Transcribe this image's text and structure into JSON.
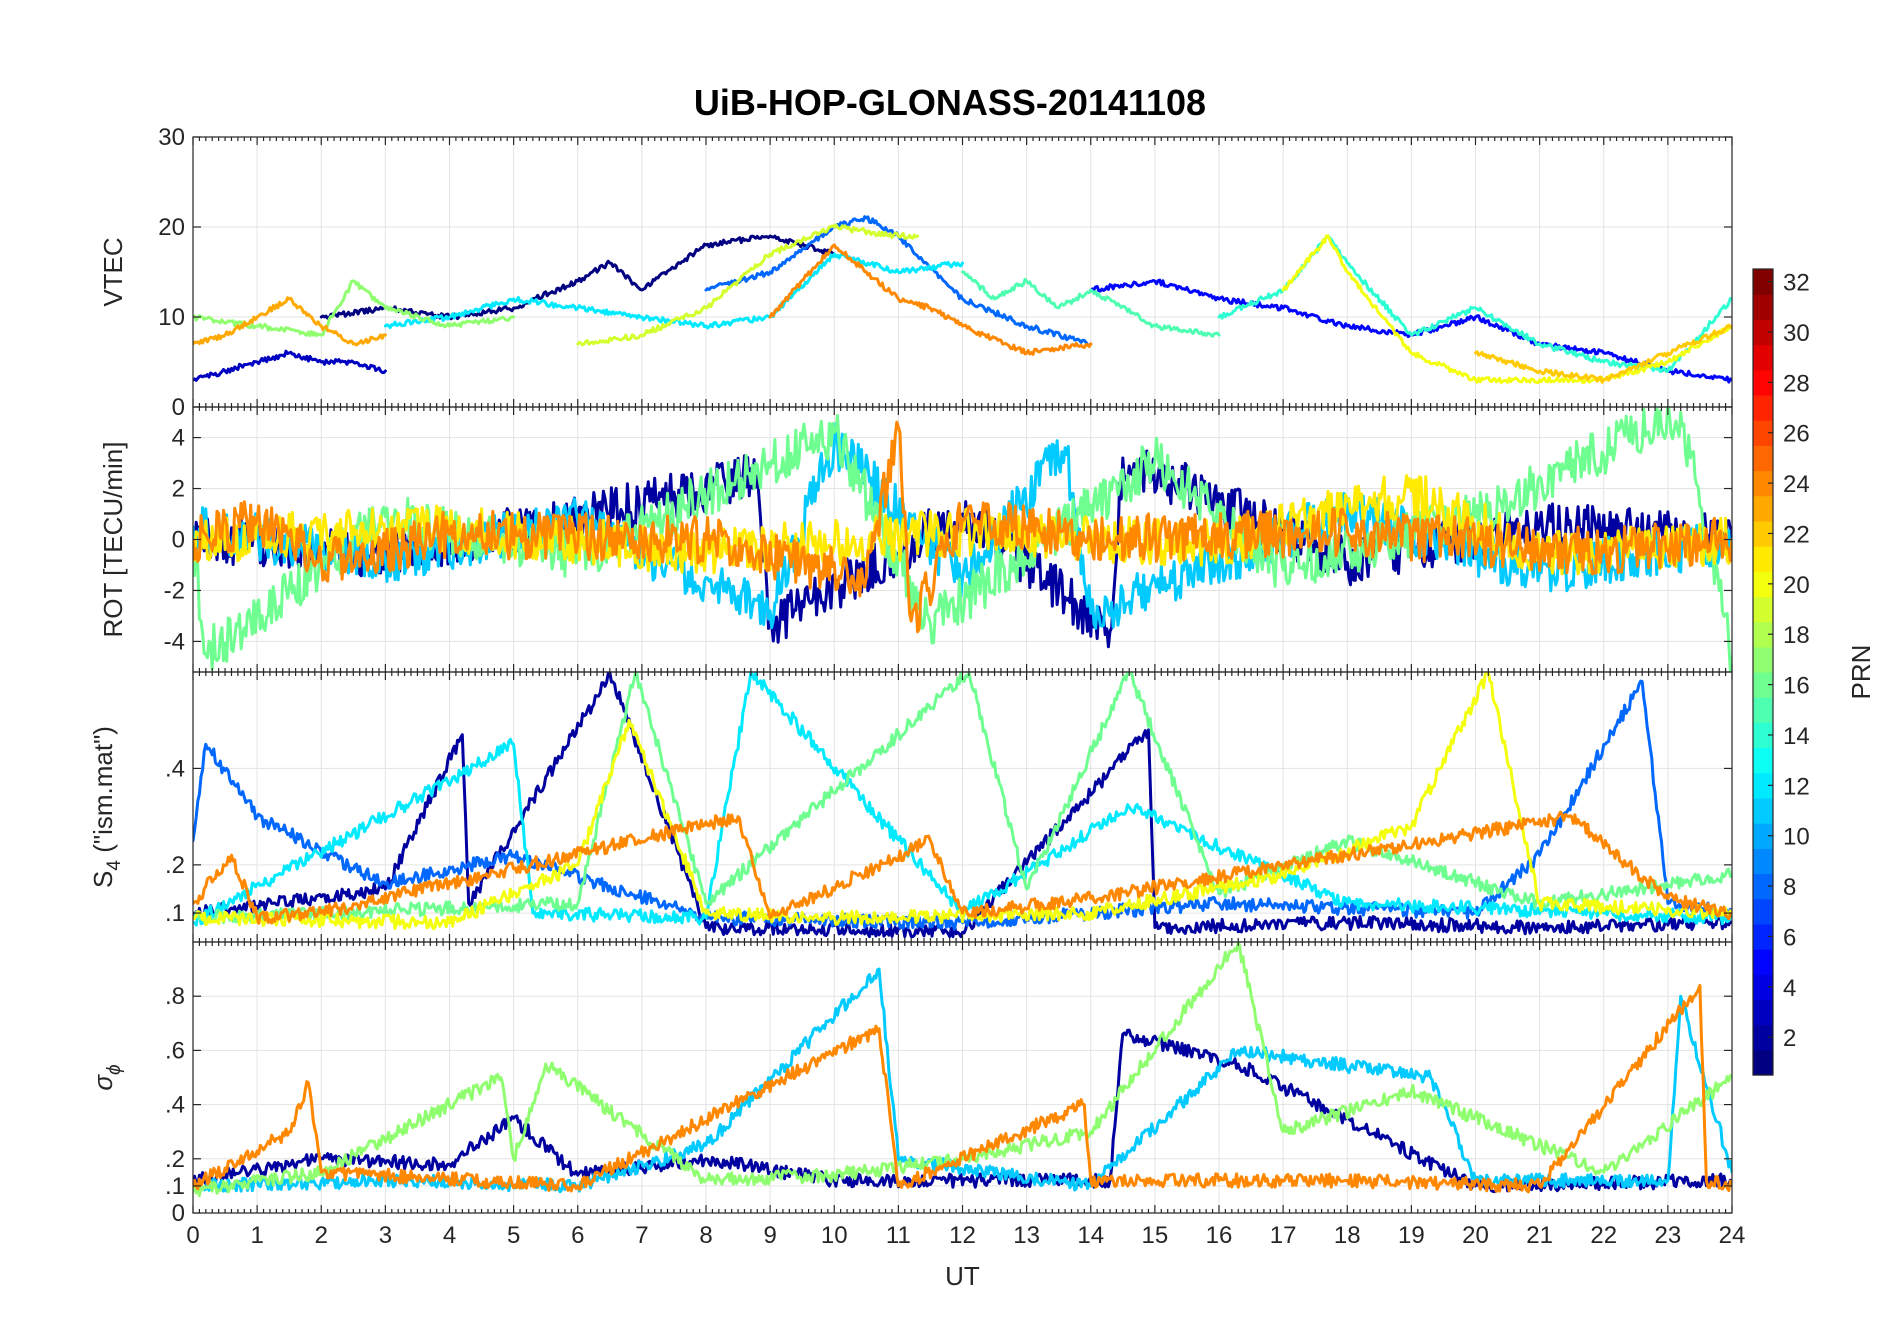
{
  "chart_data": {
    "type": "line",
    "title": "UiB-HOP-GLONASS-20141108",
    "xlabel": "UT",
    "xlim": [
      0,
      24
    ],
    "x_ticks": [
      0,
      1,
      2,
      3,
      4,
      5,
      6,
      7,
      8,
      9,
      10,
      11,
      12,
      13,
      14,
      15,
      16,
      17,
      18,
      19,
      20,
      21,
      22,
      23,
      24
    ],
    "panels": [
      {
        "id": "vtec",
        "ylabel": "VTEC",
        "ylim": [
          0,
          30
        ],
        "y_ticks": [
          0,
          10,
          20,
          30
        ],
        "typical_range": [
          2,
          21
        ],
        "traces": [
          {
            "prn": 3,
            "x": [
              0.0,
              0.5,
              1.0,
              1.5,
              2.0,
              2.5,
              3.0
            ],
            "y": [
              3,
              4,
              5,
              6,
              5,
              5,
              4
            ]
          },
          {
            "prn": 1,
            "x": [
              2.0,
              3.0,
              4.0,
              5.0,
              6.0,
              6.5,
              7.0,
              8.0,
              9.0,
              10.0
            ],
            "y": [
              10,
              11,
              10,
              11,
              14,
              16,
              13,
              18,
              19,
              17
            ]
          },
          {
            "prn": 8,
            "x": [
              8.0,
              9.0,
              10.0,
              10.5,
              11.0,
              12.0,
              13.0,
              14.0
            ],
            "y": [
              13,
              15,
              20,
              21,
              19,
              12,
              9,
              7
            ]
          },
          {
            "prn": 5,
            "x": [
              14.0,
              15.0,
              16.0,
              17.0,
              18.0,
              19.0,
              20.0,
              21.0,
              22.0,
              23.0,
              24.0
            ],
            "y": [
              13,
              14,
              12,
              11,
              9,
              8,
              10,
              7,
              6,
              4,
              3
            ]
          },
          {
            "prn": 12,
            "x": [
              3.0,
              4.0,
              5.0,
              6.0,
              7.0,
              8.0,
              9.0,
              10.0,
              11.0,
              12.0
            ],
            "y": [
              9,
              10,
              12,
              11,
              10,
              9,
              10,
              17,
              15,
              16
            ]
          },
          {
            "prn": 14,
            "x": [
              16.0,
              17.0,
              17.7,
              18.0,
              19.0,
              20.0,
              21.0,
              22.0,
              23.0,
              24.0
            ],
            "y": [
              10,
              13,
              19,
              16,
              8,
              11,
              7,
              5,
              4,
              12
            ]
          },
          {
            "prn": 15,
            "x": [
              12.0,
              12.5,
              13.0,
              13.5,
              14.0,
              15.0,
              16.0
            ],
            "y": [
              15,
              12,
              14,
              11,
              13,
              9,
              8
            ]
          },
          {
            "prn": 17,
            "x": [
              0.0,
              1.0,
              2.0,
              2.5,
              3.0,
              4.0,
              5.0
            ],
            "y": [
              10,
              9,
              8,
              14,
              11,
              9,
              10
            ]
          },
          {
            "prn": 19,
            "x": [
              6.0,
              7.0,
              8.0,
              9.0,
              10.0,
              11.0,
              11.3
            ],
            "y": [
              7,
              8,
              11,
              17,
              20,
              19,
              19
            ]
          },
          {
            "prn": 20,
            "x": [
              17.0,
              17.7,
              18.0,
              19.0,
              20.0,
              21.0,
              22.0,
              23.0,
              24.0
            ],
            "y": [
              13,
              19,
              15,
              6,
              3,
              3,
              3,
              5,
              9
            ]
          },
          {
            "prn": 23,
            "x": [
              0.0,
              0.5,
              1.0,
              1.5,
              2.0,
              2.5,
              3.0
            ],
            "y": [
              7,
              8,
              10,
              12,
              9,
              7,
              8
            ]
          },
          {
            "prn": 24,
            "x": [
              9.0,
              10.0,
              10.5,
              11.0,
              11.5,
              12.0,
              13.0,
              14.0
            ],
            "y": [
              10,
              18,
              15,
              12,
              11,
              9,
              6,
              7
            ]
          },
          {
            "prn": 22,
            "x": [
              20.0,
              21.0,
              22.0,
              23.0,
              24.0
            ],
            "y": [
              6,
              4,
              3,
              6,
              9
            ]
          }
        ]
      },
      {
        "id": "rot",
        "ylabel": "ROT [TECU/min]",
        "ylim": [
          -5.2,
          5.2
        ],
        "y_ticks": [
          -4,
          -2,
          0,
          2,
          4
        ],
        "typical_range": [
          -4.6,
          5
        ],
        "traces": [
          {
            "prn": 2,
            "x": [
              0,
              3,
              6,
              8.8,
              9,
              12,
              14.3,
              14.5,
              18,
              21,
              24
            ],
            "y": [
              0,
              -0.6,
              0.8,
              2.5,
              -3.4,
              1,
              -3.6,
              3.2,
              -0.9,
              0.6,
              0
            ]
          },
          {
            "prn": 11,
            "x": [
              0,
              3,
              6,
              9,
              10,
              12,
              13.6,
              14,
              18,
              21,
              24
            ],
            "y": [
              0.5,
              -0.8,
              0.7,
              -2.8,
              3.8,
              -1.5,
              3.6,
              -2.9,
              1.1,
              -1.3,
              0
            ]
          },
          {
            "prn": 16,
            "x": [
              0,
              0.2,
              3,
              6,
              10,
              11.5,
              15,
              17,
              20,
              23.2,
              24
            ],
            "y": [
              0,
              -4.5,
              0.9,
              -0.7,
              4.2,
              -3.3,
              3.1,
              -1.2,
              0.9,
              5,
              -4.6
            ]
          },
          {
            "prn": 21,
            "x": [
              0,
              4,
              8,
              12,
              16,
              19,
              21,
              24
            ],
            "y": [
              0,
              0.4,
              -0.5,
              0.3,
              -0.2,
              1.9,
              -0.6,
              0
            ]
          },
          {
            "prn": 24,
            "x": [
              0,
              1,
              2,
              4,
              8,
              10.5,
              11,
              11.2,
              12,
              14,
              18,
              22,
              24
            ],
            "y": [
              0,
              0.8,
              -0.9,
              0.2,
              0,
              -1.5,
              4.4,
              -3.2,
              0.8,
              0,
              0.3,
              -0.5,
              0
            ]
          }
        ]
      },
      {
        "id": "s4",
        "ylabel": "S4 (\"ism.mat\")",
        "ylabel_main": "S",
        "ylabel_sub": "4",
        "ylabel_tail": " (\"ism.mat\")",
        "ylim": [
          0.04,
          0.6
        ],
        "y_ticks": [
          0.1,
          0.2,
          0.4
        ],
        "typical_range": [
          0.05,
          0.6
        ],
        "traces": [
          {
            "prn": 2,
            "x": [
              0,
              3,
              4.2,
              4.3,
              6.3,
              6.5,
              8,
              12,
              14.9,
              15,
              18,
              21,
              24
            ],
            "y": [
              0.1,
              0.15,
              0.47,
              0.12,
              0.55,
              0.6,
              0.07,
              0.06,
              0.48,
              0.07,
              0.08,
              0.07,
              0.08
            ]
          },
          {
            "prn": 8,
            "x": [
              0,
              0.2,
              1,
              3,
              5,
              8,
              12,
              16,
              20,
              21,
              22.6,
              23,
              24
            ],
            "y": [
              0.25,
              0.45,
              0.3,
              0.16,
              0.22,
              0.09,
              0.08,
              0.12,
              0.1,
              0.22,
              0.58,
              0.12,
              0.1
            ]
          },
          {
            "prn": 12,
            "x": [
              0,
              5,
              5.3,
              8,
              8.7,
              12,
              14.6,
              18,
              22,
              24
            ],
            "y": [
              0.08,
              0.45,
              0.1,
              0.09,
              0.6,
              0.1,
              0.32,
              0.12,
              0.1,
              0.09
            ]
          },
          {
            "prn": 16,
            "x": [
              0,
              6,
              6.9,
              8,
              12.1,
              13,
              14.6,
              16,
              18,
              21,
              24
            ],
            "y": [
              0.09,
              0.12,
              0.6,
              0.12,
              0.6,
              0.15,
              0.6,
              0.14,
              0.25,
              0.12,
              0.18
            ]
          },
          {
            "prn": 20,
            "x": [
              0,
              4,
              6,
              6.8,
              8,
              10,
              14,
              17,
              19,
              20.2,
              21,
              24
            ],
            "y": [
              0.09,
              0.08,
              0.2,
              0.5,
              0.1,
              0.09,
              0.1,
              0.18,
              0.28,
              0.6,
              0.12,
              0.1
            ]
          },
          {
            "prn": 24,
            "x": [
              0,
              0.6,
              1,
              2,
              8.5,
              9,
              11.5,
              12,
              14,
              21.5,
              23,
              24
            ],
            "y": [
              0.12,
              0.22,
              0.09,
              0.1,
              0.3,
              0.09,
              0.25,
              0.1,
              0.13,
              0.3,
              0.13,
              0.1
            ]
          }
        ]
      },
      {
        "id": "sigma",
        "ylabel_sym": "σ",
        "ylabel_sub": "ϕ",
        "ylim": [
          0,
          1
        ],
        "y_ticks": [
          0,
          0.1,
          0.2,
          0.4,
          0.6,
          0.8
        ],
        "typical_range": [
          0.06,
          1.0
        ],
        "traces": [
          {
            "prn": 2,
            "x": [
              0,
              2,
              4,
              5,
              6,
              8,
              10,
              14.3,
              14.5,
              16.3,
              20,
              24
            ],
            "y": [
              0.12,
              0.2,
              0.18,
              0.35,
              0.14,
              0.2,
              0.12,
              0.12,
              0.66,
              0.55,
              0.1,
              0.12
            ]
          },
          {
            "prn": 11,
            "x": [
              0,
              3,
              6,
              8,
              10.7,
              11,
              14,
              16.3,
              19.3,
              20,
              23,
              23.2,
              24
            ],
            "y": [
              0.1,
              0.12,
              0.1,
              0.25,
              0.9,
              0.2,
              0.1,
              0.6,
              0.5,
              0.12,
              0.12,
              0.8,
              0.15
            ]
          },
          {
            "prn": 17,
            "x": [
              0,
              2,
              4.8,
              5,
              5.5,
              8,
              10,
              12,
              14,
              16.3,
              17,
              19,
              22,
              24
            ],
            "y": [
              0.08,
              0.15,
              0.5,
              0.2,
              0.55,
              0.12,
              0.14,
              0.2,
              0.3,
              1.0,
              0.3,
              0.45,
              0.15,
              0.5
            ]
          },
          {
            "prn": 24,
            "x": [
              0,
              1.5,
              1.8,
              2,
              6,
              10.7,
              11,
              13.9,
              14,
              18,
              21,
              23.5,
              23.6,
              24
            ],
            "y": [
              0.1,
              0.3,
              0.48,
              0.15,
              0.1,
              0.68,
              0.1,
              0.4,
              0.12,
              0.12,
              0.1,
              0.84,
              0.12,
              0.1
            ]
          }
        ]
      }
    ],
    "colorbar": {
      "label": "PRN",
      "lim": [
        1,
        32
      ],
      "ticks": [
        2,
        4,
        6,
        8,
        10,
        12,
        14,
        16,
        18,
        20,
        22,
        24,
        26,
        28,
        30,
        32
      ],
      "colormap": "jet"
    },
    "grid": true
  }
}
